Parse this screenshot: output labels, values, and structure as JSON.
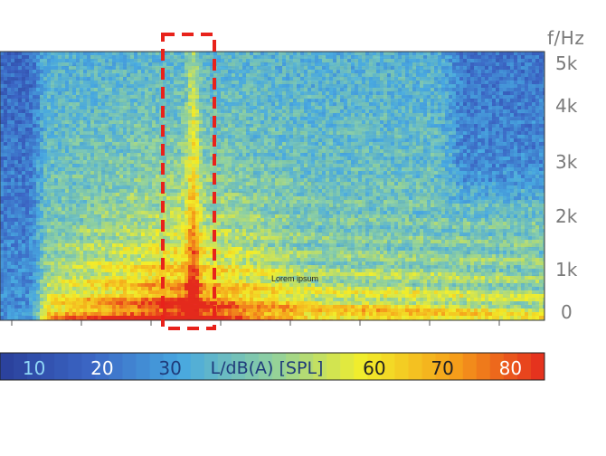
{
  "chart_data": {
    "type": "heatmap",
    "title": "",
    "y_axis": {
      "label": "f/Hz",
      "ticks": [
        "0",
        "1k",
        "2k",
        "3k",
        "4k",
        "5k"
      ],
      "range": [
        0,
        5000
      ]
    },
    "colorbar": {
      "label": "L/dB(A) [SPL]",
      "ticks": [
        "10",
        "20",
        "30",
        "60",
        "70",
        "80"
      ],
      "range": [
        5,
        85
      ],
      "colors": [
        "#2a3f9a",
        "#3b66c4",
        "#48a8e0",
        "#8fd0a0",
        "#f2ee2a",
        "#f5a01a",
        "#e42a1e"
      ]
    },
    "annotation": "Lorem ipsum",
    "highlight": "dashed red box around a transient event"
  },
  "colors": {
    "highlight": "#e8221b",
    "axis_text": "#7a7a7a"
  }
}
